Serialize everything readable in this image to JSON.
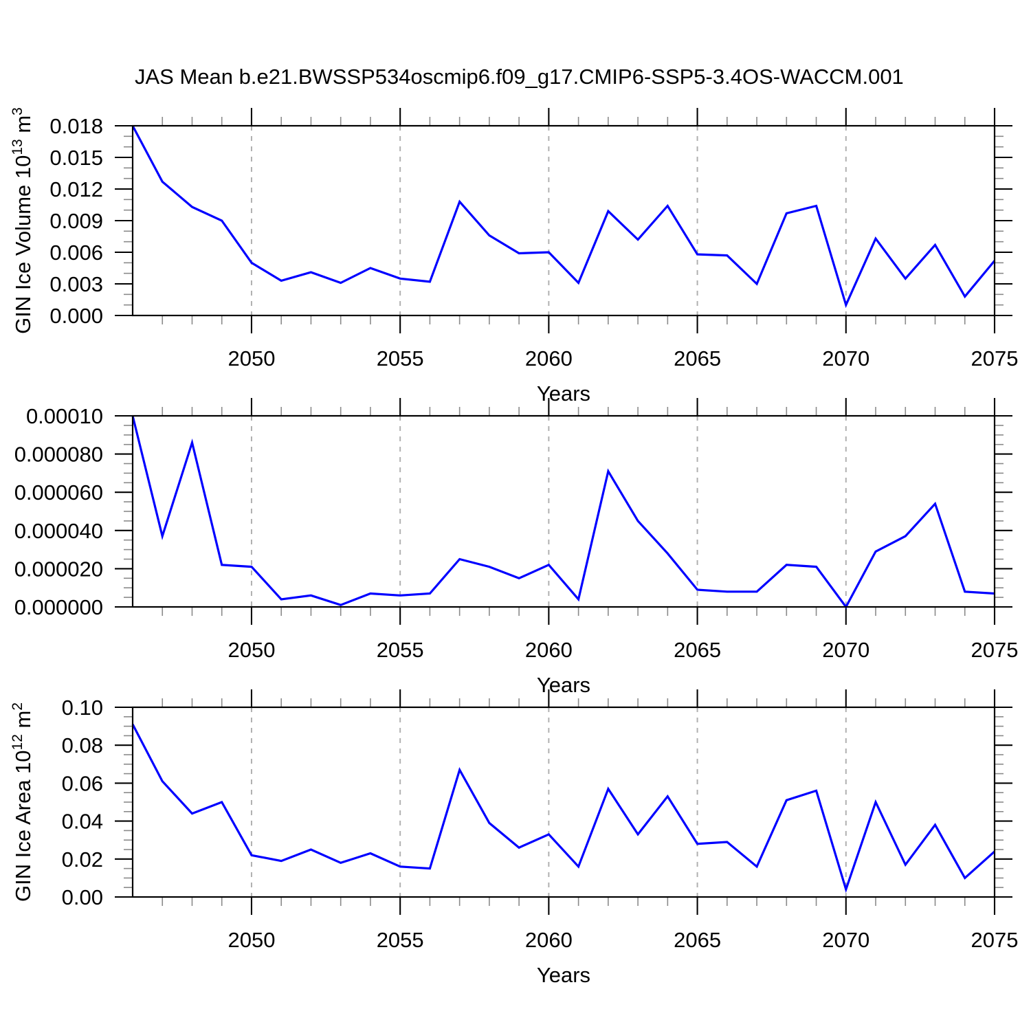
{
  "title": "JAS Mean b.e21.BWSSP534oscmip6.f09_g17.CMIP6-SSP5-3.4OS-WACCM.001",
  "line_color": "#0000ff",
  "grid_color": "#b0b0b0",
  "chart_data": [
    {
      "type": "line",
      "name": "gin-ice-volume",
      "ylabel": "GIN Ice Volume 10^13 m^3",
      "ylabel_segments": [
        {
          "t": "GIN Ice Volume 10"
        },
        {
          "t": "13",
          "sup": true
        },
        {
          "t": " m"
        },
        {
          "t": "3",
          "sup": true
        }
      ],
      "xlabel": "Years",
      "x": [
        2046,
        2047,
        2048,
        2049,
        2050,
        2051,
        2052,
        2053,
        2054,
        2055,
        2056,
        2057,
        2058,
        2059,
        2060,
        2061,
        2062,
        2063,
        2064,
        2065,
        2066,
        2067,
        2068,
        2069,
        2070,
        2071,
        2072,
        2073,
        2074,
        2075
      ],
      "values": [
        0.018,
        0.0127,
        0.0103,
        0.009,
        0.005,
        0.0033,
        0.0041,
        0.0031,
        0.0045,
        0.0035,
        0.0032,
        0.0108,
        0.0076,
        0.0059,
        0.006,
        0.0031,
        0.0099,
        0.0072,
        0.0104,
        0.0058,
        0.0057,
        0.003,
        0.0097,
        0.0104,
        0.001,
        0.0073,
        0.0035,
        0.0067,
        0.0018,
        0.0052
      ],
      "ylim": [
        0,
        0.018
      ],
      "yticks": [
        0,
        0.003,
        0.006,
        0.009,
        0.012,
        0.015,
        0.018
      ],
      "ytick_labels": [
        "0.000",
        "0.003",
        "0.006",
        "0.009",
        "0.012",
        "0.015",
        "0.018"
      ],
      "y_minors_per_interval": 2,
      "xlim": [
        2046,
        2075
      ],
      "xtick_major": [
        2050,
        2055,
        2060,
        2065,
        2070,
        2075
      ],
      "xtick_labels": [
        "2050",
        "2055",
        "2060",
        "2065",
        "2070",
        "2075"
      ],
      "x_minor_step": 1,
      "grid_years": [
        2050,
        2055,
        2060,
        2065,
        2070
      ],
      "grid_style": "dashed-vertical",
      "legend": "none"
    },
    {
      "type": "line",
      "name": "middle-series",
      "ylabel": "",
      "ylabel_segments": [],
      "xlabel": "Years",
      "x": [
        2046,
        2047,
        2048,
        2049,
        2050,
        2051,
        2052,
        2053,
        2054,
        2055,
        2056,
        2057,
        2058,
        2059,
        2060,
        2061,
        2062,
        2063,
        2064,
        2065,
        2066,
        2067,
        2068,
        2069,
        2070,
        2071,
        2072,
        2073,
        2074,
        2075
      ],
      "values": [
        0.0001,
        3.7e-05,
        8.6e-05,
        2.2e-05,
        2.1e-05,
        4e-06,
        6e-06,
        1e-06,
        7e-06,
        6e-06,
        7e-06,
        2.5e-05,
        2.1e-05,
        1.5e-05,
        2.2e-05,
        4e-06,
        7.1e-05,
        4.5e-05,
        2.8e-05,
        9e-06,
        8e-06,
        8e-06,
        2.2e-05,
        2.1e-05,
        0.0,
        2.9e-05,
        3.7e-05,
        5.4e-05,
        8e-06,
        7e-06
      ],
      "ylim": [
        0,
        0.0001
      ],
      "yticks": [
        0,
        2e-05,
        4e-05,
        6e-05,
        8e-05,
        0.0001
      ],
      "ytick_labels": [
        "0.000000",
        "0.000020",
        "0.000040",
        "0.000060",
        "0.000080",
        "0.00010"
      ],
      "y_minors_per_interval": 3,
      "xlim": [
        2046,
        2075
      ],
      "xtick_major": [
        2050,
        2055,
        2060,
        2065,
        2070,
        2075
      ],
      "xtick_labels": [
        "2050",
        "2055",
        "2060",
        "2065",
        "2070",
        "2075"
      ],
      "x_minor_step": 1,
      "grid_years": [
        2050,
        2055,
        2060,
        2065,
        2070
      ],
      "grid_style": "dashed-vertical",
      "legend": "none"
    },
    {
      "type": "line",
      "name": "gin-ice-area",
      "ylabel": "GIN Ice Area 10^12 m^2",
      "ylabel_segments": [
        {
          "t": "GIN Ice Area 10"
        },
        {
          "t": "12",
          "sup": true
        },
        {
          "t": " m"
        },
        {
          "t": "2",
          "sup": true
        }
      ],
      "xlabel": "Years",
      "x": [
        2046,
        2047,
        2048,
        2049,
        2050,
        2051,
        2052,
        2053,
        2054,
        2055,
        2056,
        2057,
        2058,
        2059,
        2060,
        2061,
        2062,
        2063,
        2064,
        2065,
        2066,
        2067,
        2068,
        2069,
        2070,
        2071,
        2072,
        2073,
        2074,
        2075
      ],
      "values": [
        0.091,
        0.061,
        0.044,
        0.05,
        0.022,
        0.019,
        0.025,
        0.018,
        0.023,
        0.016,
        0.015,
        0.067,
        0.039,
        0.026,
        0.033,
        0.016,
        0.057,
        0.033,
        0.053,
        0.028,
        0.029,
        0.016,
        0.051,
        0.056,
        0.004,
        0.05,
        0.017,
        0.038,
        0.01,
        0.024
      ],
      "ylim": [
        0,
        0.1
      ],
      "yticks": [
        0,
        0.02,
        0.04,
        0.06,
        0.08,
        0.1
      ],
      "ytick_labels": [
        "0.00",
        "0.02",
        "0.04",
        "0.06",
        "0.08",
        "0.10"
      ],
      "y_minors_per_interval": 3,
      "xlim": [
        2046,
        2075
      ],
      "xtick_major": [
        2050,
        2055,
        2060,
        2065,
        2070,
        2075
      ],
      "xtick_labels": [
        "2050",
        "2055",
        "2060",
        "2065",
        "2070",
        "2075"
      ],
      "x_minor_step": 1,
      "grid_years": [
        2050,
        2055,
        2060,
        2065,
        2070
      ],
      "grid_style": "dashed-vertical",
      "legend": "none"
    }
  ]
}
